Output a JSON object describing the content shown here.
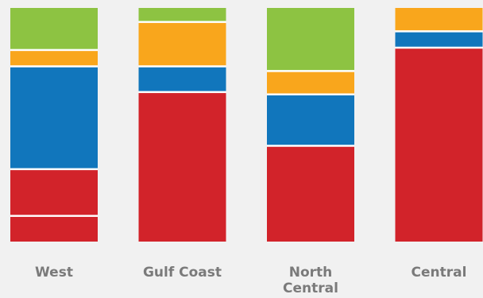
{
  "chart_data": {
    "type": "bar",
    "stacked": true,
    "normalized": true,
    "title": "",
    "xlabel": "",
    "ylabel": "",
    "ylim": [
      0,
      100
    ],
    "grid": false,
    "legend": "none",
    "categories": [
      [
        "West"
      ],
      [
        "Gulf Coast"
      ],
      [
        "North",
        "Central"
      ],
      [
        "Central"
      ]
    ],
    "series": [
      {
        "color": "#d2232a",
        "values": [
          11,
          64,
          41,
          83
        ]
      },
      {
        "color": "#d2232a",
        "values": [
          20,
          0,
          0,
          0
        ]
      },
      {
        "color": "#1176bc",
        "values": [
          44,
          11,
          22,
          7
        ]
      },
      {
        "color": "#f9a61c",
        "values": [
          7,
          19,
          10,
          10
        ]
      },
      {
        "color": "#8dc342",
        "values": [
          18,
          6,
          27,
          0
        ]
      }
    ]
  }
}
